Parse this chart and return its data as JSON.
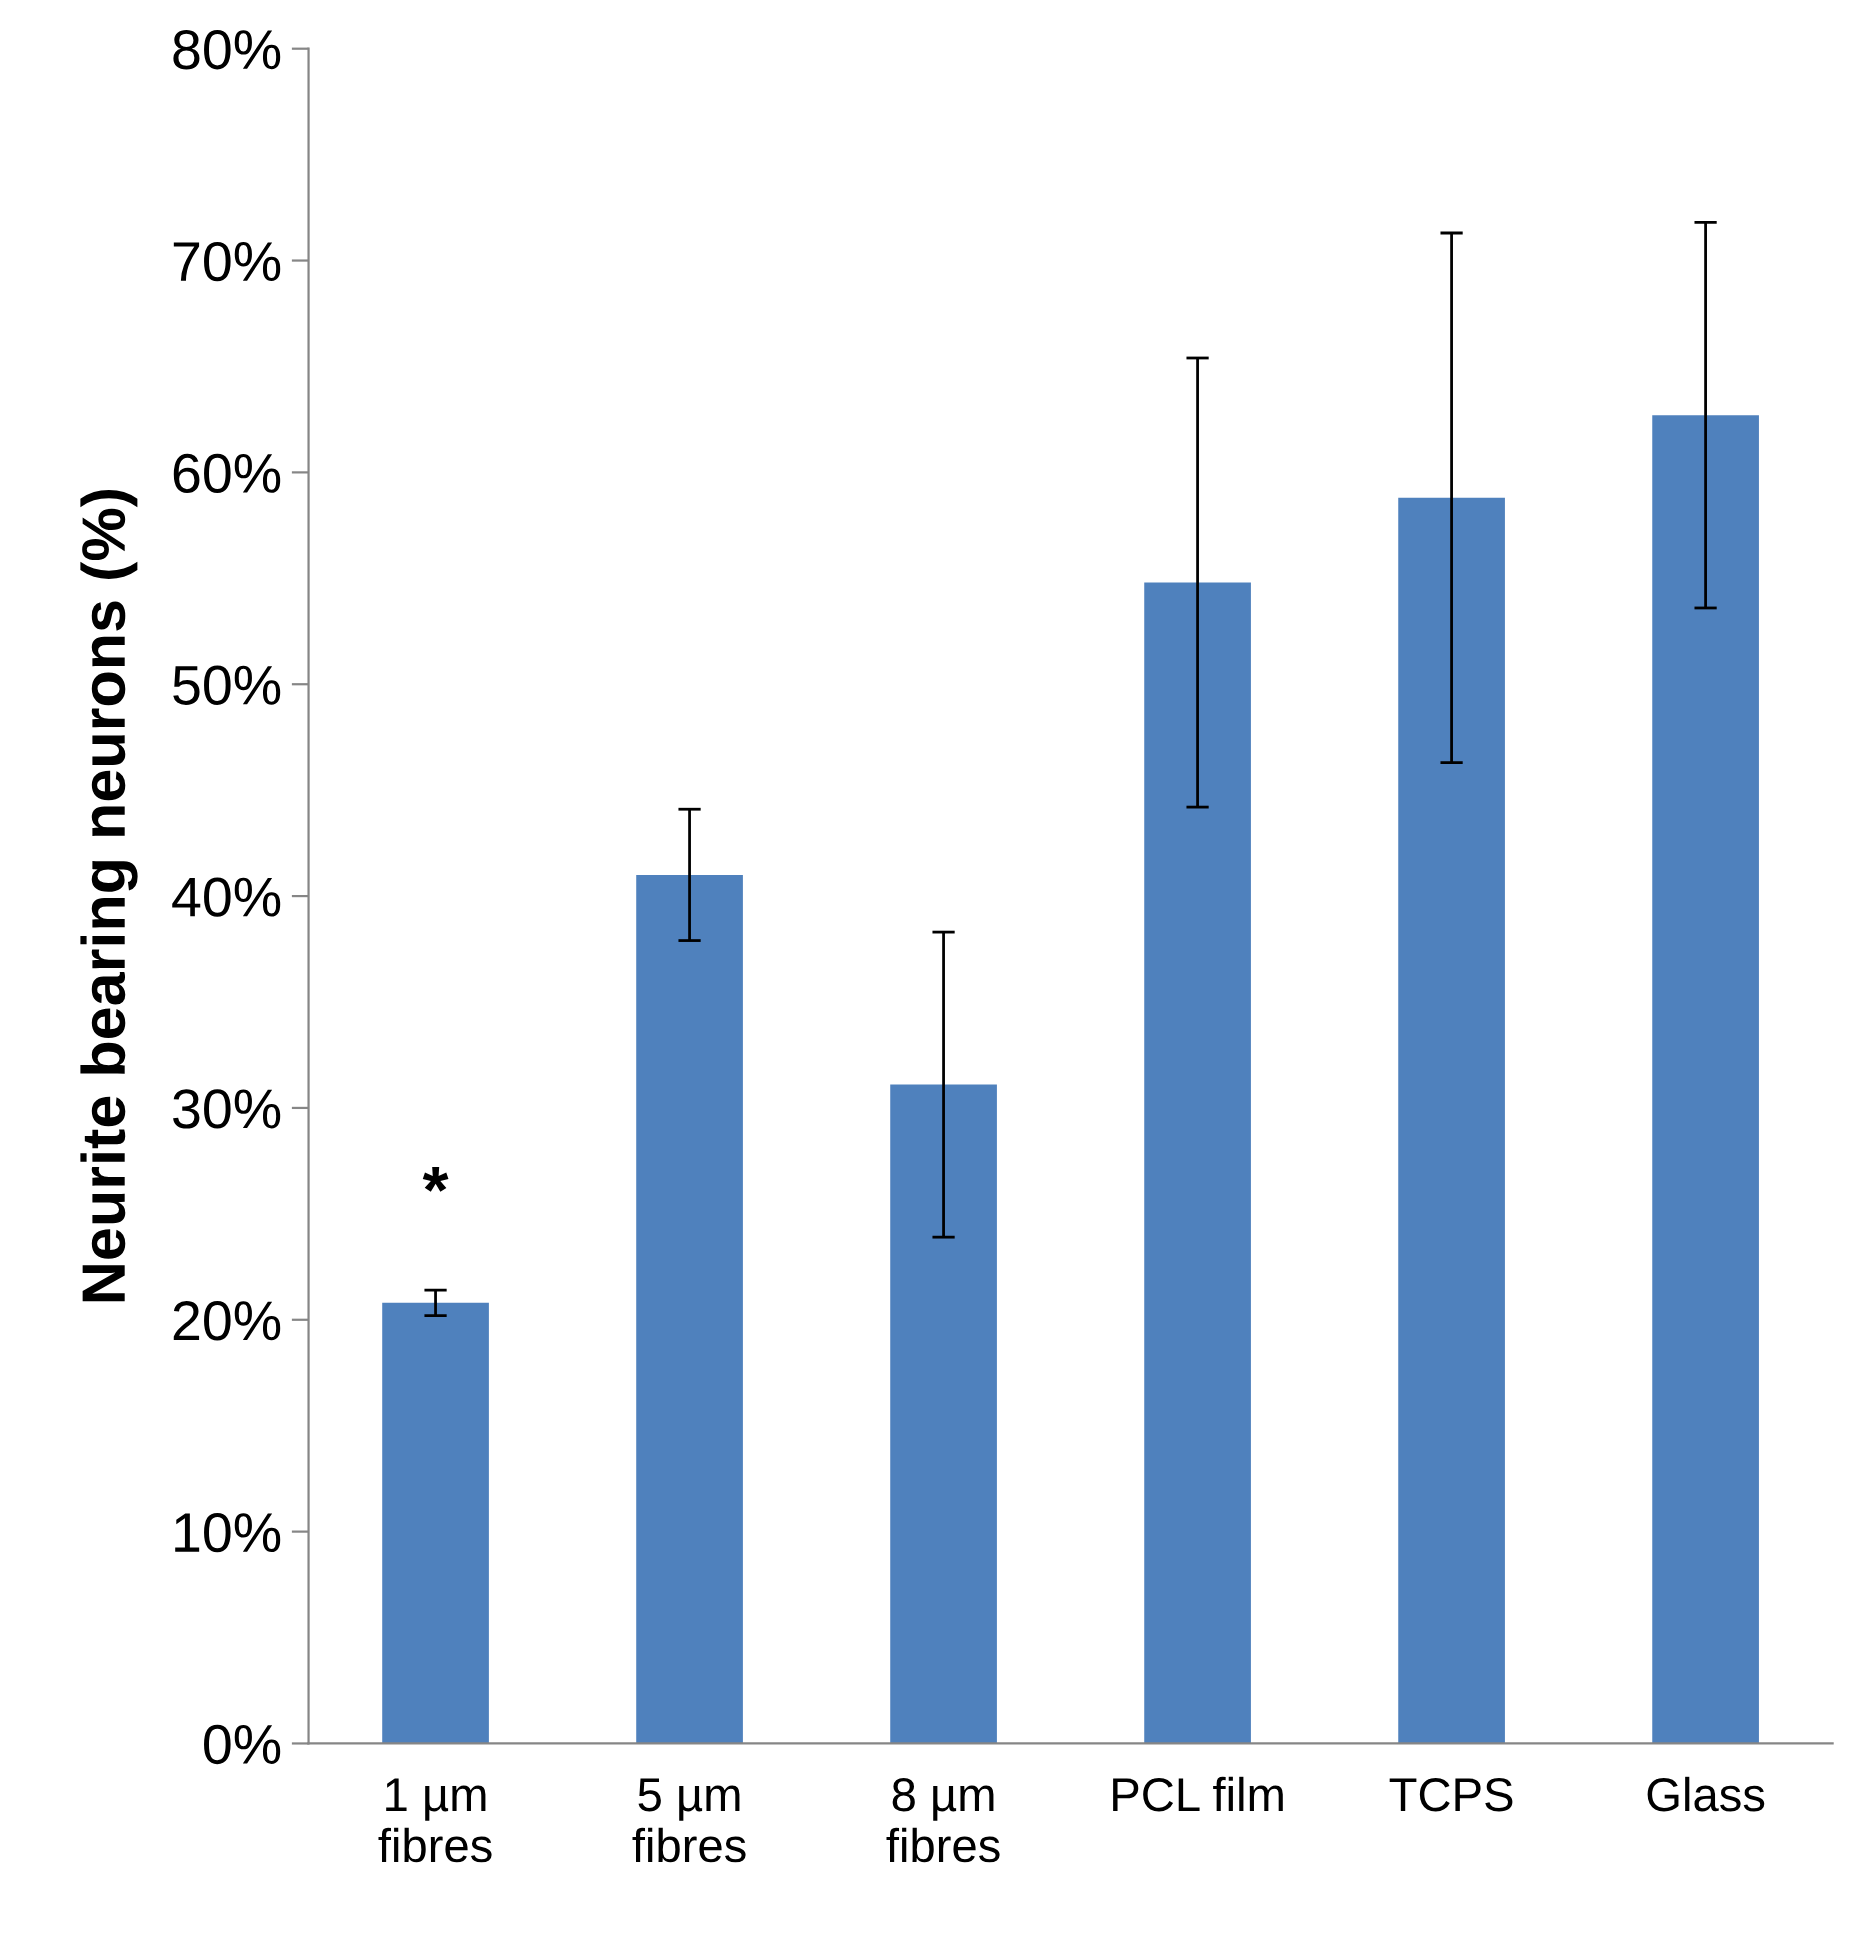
{
  "chart_data": {
    "type": "bar",
    "ylabel": "Neurite bearing neurons (%)",
    "categories": [
      "1 µm\nfibres",
      "5 µm\nfibres",
      "8 µm\nfibres",
      "PCL film",
      "TCPS",
      "Glass"
    ],
    "values": [
      20.8,
      41.0,
      31.1,
      54.8,
      58.8,
      62.7
    ],
    "errors": [
      0.6,
      3.1,
      7.2,
      10.6,
      12.5,
      9.1
    ],
    "color": "#4f81bd",
    "ylim": [
      0,
      80
    ],
    "yticks": [
      {
        "value": 0,
        "label": "0%"
      },
      {
        "value": 10,
        "label": "10%"
      },
      {
        "value": 20,
        "label": "20%"
      },
      {
        "value": 30,
        "label": "30%"
      },
      {
        "value": 40,
        "label": "40%"
      },
      {
        "value": 50,
        "label": "50%"
      },
      {
        "value": 60,
        "label": "60%"
      },
      {
        "value": 70,
        "label": "70%"
      },
      {
        "value": 80,
        "label": "80%"
      }
    ],
    "annotations": [
      "*"
    ],
    "grid": false,
    "legend": false
  }
}
